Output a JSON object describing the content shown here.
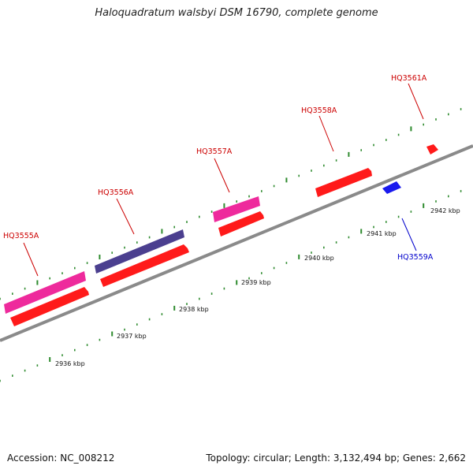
{
  "title": "Haloquadratum walsbyi DSM 16790, complete genome",
  "footer": {
    "accession": "Accession: NC_008212",
    "topology": "Topology: circular; Length: 3,132,494 bp; Genes: 2,662"
  },
  "colors": {
    "backbone": "#8a8a8a",
    "tick": "#2e8b2e",
    "cds_red": "#ff1a1a",
    "pink": "#ee2a9c",
    "purple": "#4b3f8f",
    "blue": "#1a1aee",
    "label_red": "#cc0000",
    "label_blue": "#0000cc"
  },
  "scale_labels": [
    "2936 kbp",
    "2937 kbp",
    "2938 kbp",
    "2939 kbp",
    "2940 kbp",
    "2941 kbp",
    "2942 kbp"
  ],
  "gene_labels": [
    {
      "text": "HQ3555A",
      "color": "red"
    },
    {
      "text": "HQ3556A",
      "color": "red"
    },
    {
      "text": "HQ3557A",
      "color": "red"
    },
    {
      "text": "HQ3558A",
      "color": "red"
    },
    {
      "text": "HQ3561A",
      "color": "red"
    },
    {
      "text": "HQ3559A",
      "color": "blue"
    }
  ]
}
